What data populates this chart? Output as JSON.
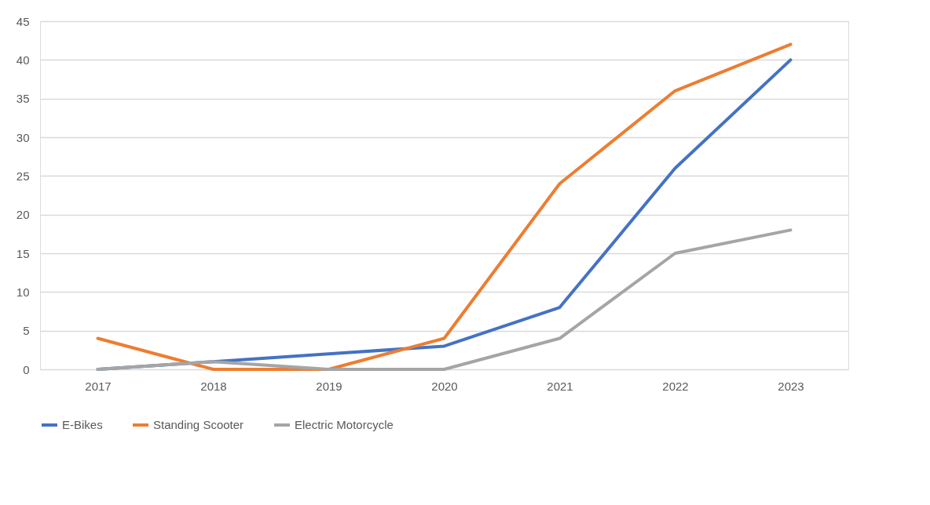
{
  "chart_data": {
    "type": "line",
    "categories": [
      "2017",
      "2018",
      "2019",
      "2020",
      "2021",
      "2022",
      "2023"
    ],
    "series": [
      {
        "name": "E-Bikes",
        "color": "#4472c4",
        "values": [
          0,
          1,
          2,
          3,
          8,
          26,
          40
        ]
      },
      {
        "name": "Standing Scooter",
        "color": "#ed7d31",
        "values": [
          4,
          0,
          0,
          4,
          24,
          36,
          42
        ]
      },
      {
        "name": "Electric Motorcycle",
        "color": "#a5a5a5",
        "values": [
          0,
          1,
          0,
          0,
          4,
          15,
          18
        ]
      }
    ],
    "ylim": [
      0,
      45
    ],
    "yticks": [
      0,
      5,
      10,
      15,
      20,
      25,
      30,
      35,
      40,
      45
    ],
    "grid": "y",
    "legend": "bottom",
    "marker": "none",
    "line_style": "solid"
  }
}
